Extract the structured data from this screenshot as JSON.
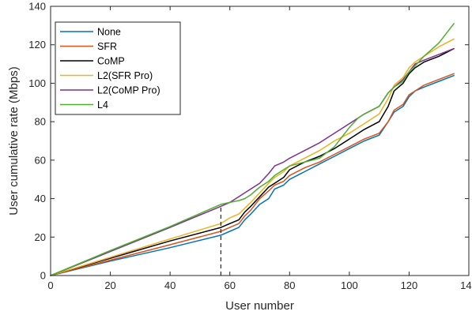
{
  "chart_data": {
    "type": "line",
    "title": "",
    "xlabel": "User number",
    "ylabel": "User cumulative rate (Mbps)",
    "xlim": [
      0,
      140
    ],
    "ylim": [
      0,
      140
    ],
    "xticks": [
      0,
      20,
      40,
      60,
      80,
      100,
      120,
      140
    ],
    "yticks": [
      0,
      20,
      40,
      60,
      80,
      100,
      120,
      140
    ],
    "grid": false,
    "legend_position": "top-left",
    "annotations": [
      {
        "type": "vertical-dashed-line",
        "x": 57,
        "y_from": 0,
        "y_to": 37
      }
    ],
    "series": [
      {
        "name": "None",
        "color": "#0072BD",
        "points": [
          [
            0,
            0
          ],
          [
            20,
            7.5
          ],
          [
            40,
            14.5
          ],
          [
            57,
            21
          ],
          [
            60,
            23
          ],
          [
            63,
            25
          ],
          [
            65,
            29
          ],
          [
            67,
            32
          ],
          [
            70,
            37
          ],
          [
            73,
            40
          ],
          [
            75,
            45
          ],
          [
            78,
            47
          ],
          [
            80,
            50
          ],
          [
            85,
            54
          ],
          [
            90,
            58
          ],
          [
            95,
            62
          ],
          [
            100,
            66
          ],
          [
            105,
            70
          ],
          [
            110,
            73
          ],
          [
            113,
            80
          ],
          [
            115,
            85
          ],
          [
            118,
            88
          ],
          [
            120,
            93
          ],
          [
            122,
            96
          ],
          [
            125,
            98
          ],
          [
            130,
            101
          ],
          [
            135,
            104
          ]
        ]
      },
      {
        "name": "SFR",
        "color": "#D95319",
        "points": [
          [
            0,
            0
          ],
          [
            20,
            8
          ],
          [
            40,
            16
          ],
          [
            57,
            23
          ],
          [
            60,
            25
          ],
          [
            63,
            27
          ],
          [
            65,
            31
          ],
          [
            67,
            34
          ],
          [
            70,
            40
          ],
          [
            73,
            44
          ],
          [
            75,
            47
          ],
          [
            78,
            49
          ],
          [
            80,
            52
          ],
          [
            85,
            56
          ],
          [
            90,
            59
          ],
          [
            95,
            63
          ],
          [
            100,
            67
          ],
          [
            105,
            71
          ],
          [
            110,
            74
          ],
          [
            113,
            80
          ],
          [
            115,
            86
          ],
          [
            118,
            89
          ],
          [
            120,
            94
          ],
          [
            122,
            96
          ],
          [
            125,
            99
          ],
          [
            130,
            102
          ],
          [
            135,
            105
          ]
        ]
      },
      {
        "name": "CoMP",
        "color": "#000000",
        "points": [
          [
            0,
            0
          ],
          [
            20,
            9
          ],
          [
            40,
            18
          ],
          [
            57,
            25
          ],
          [
            60,
            27
          ],
          [
            63,
            29
          ],
          [
            65,
            33
          ],
          [
            67,
            36
          ],
          [
            70,
            41
          ],
          [
            73,
            46
          ],
          [
            75,
            48
          ],
          [
            78,
            51
          ],
          [
            80,
            55
          ],
          [
            85,
            59
          ],
          [
            90,
            62
          ],
          [
            95,
            66
          ],
          [
            100,
            71
          ],
          [
            105,
            76
          ],
          [
            110,
            80
          ],
          [
            113,
            88
          ],
          [
            115,
            96
          ],
          [
            118,
            100
          ],
          [
            120,
            105
          ],
          [
            122,
            108
          ],
          [
            125,
            111
          ],
          [
            130,
            114
          ],
          [
            135,
            118
          ]
        ]
      },
      {
        "name": "L2(SFR Pro)",
        "color": "#EDB120",
        "points": [
          [
            0,
            0
          ],
          [
            20,
            9.5
          ],
          [
            40,
            19
          ],
          [
            57,
            27
          ],
          [
            60,
            30
          ],
          [
            63,
            32
          ],
          [
            65,
            35
          ],
          [
            67,
            38
          ],
          [
            70,
            43
          ],
          [
            73,
            48
          ],
          [
            75,
            51
          ],
          [
            78,
            54
          ],
          [
            80,
            57
          ],
          [
            85,
            61
          ],
          [
            90,
            65
          ],
          [
            95,
            70
          ],
          [
            100,
            74
          ],
          [
            105,
            79
          ],
          [
            110,
            84
          ],
          [
            113,
            92
          ],
          [
            115,
            99
          ],
          [
            118,
            103
          ],
          [
            120,
            108
          ],
          [
            122,
            111
          ],
          [
            125,
            114
          ],
          [
            130,
            119
          ],
          [
            135,
            123
          ]
        ]
      },
      {
        "name": "L2(CoMP Pro)",
        "color": "#7E2F8E",
        "points": [
          [
            0,
            0
          ],
          [
            20,
            12.5
          ],
          [
            40,
            25
          ],
          [
            57,
            36
          ],
          [
            60,
            38
          ],
          [
            63,
            41
          ],
          [
            65,
            43
          ],
          [
            67,
            45
          ],
          [
            70,
            48
          ],
          [
            73,
            53
          ],
          [
            75,
            57
          ],
          [
            78,
            59
          ],
          [
            80,
            61
          ],
          [
            85,
            65
          ],
          [
            90,
            69
          ],
          [
            95,
            74
          ],
          [
            100,
            79
          ],
          [
            105,
            84
          ],
          [
            110,
            88
          ],
          [
            113,
            95
          ],
          [
            115,
            98
          ],
          [
            118,
            102
          ],
          [
            120,
            106
          ],
          [
            122,
            110
          ],
          [
            125,
            112
          ],
          [
            130,
            115
          ],
          [
            135,
            118
          ]
        ]
      },
      {
        "name": "L4",
        "color": "#4DAF2C",
        "points": [
          [
            0,
            0
          ],
          [
            20,
            13
          ],
          [
            40,
            25.5
          ],
          [
            57,
            37
          ],
          [
            60,
            38
          ],
          [
            63,
            39
          ],
          [
            65,
            40
          ],
          [
            67,
            42
          ],
          [
            70,
            46
          ],
          [
            73,
            49
          ],
          [
            75,
            52
          ],
          [
            78,
            55
          ],
          [
            80,
            57
          ],
          [
            85,
            59
          ],
          [
            90,
            61
          ],
          [
            95,
            67
          ],
          [
            100,
            77
          ],
          [
            103,
            82
          ],
          [
            105,
            84
          ],
          [
            110,
            88
          ],
          [
            113,
            95
          ],
          [
            115,
            98
          ],
          [
            118,
            101
          ],
          [
            120,
            106
          ],
          [
            122,
            109
          ],
          [
            125,
            114
          ],
          [
            130,
            121
          ],
          [
            135,
            131
          ]
        ]
      }
    ]
  }
}
